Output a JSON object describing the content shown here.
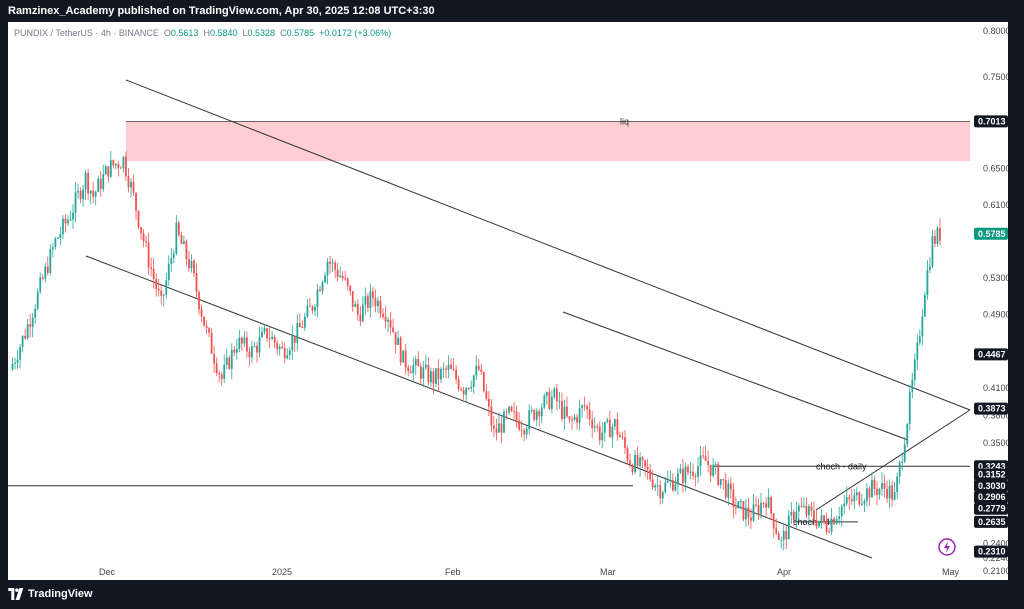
{
  "header": {
    "publisher": "Ramzinex_Academy published on TradingView.com, Apr 30, 2025 12:08 UTC+3:30"
  },
  "legend": {
    "symbol": "PUNDIX / TetherUS · 4h · BINANCE",
    "o_label": "O",
    "o_value": "0.5613",
    "h_label": "H",
    "h_value": "0.5840",
    "l_label": "L",
    "l_value": "0.5328",
    "c_label": "C",
    "c_value": "0.5785",
    "change": "+0.0172 (+3.06%)"
  },
  "footer": {
    "brand": "TradingView"
  },
  "icons": {
    "logo": "tradingview-logo-icon",
    "replay": "lightning-icon"
  },
  "colors": {
    "up": "#26a69a",
    "down": "#ef5350",
    "zone": "#ffcdd2",
    "text_green": "#089981",
    "last_price": "#089981"
  },
  "chart_data": {
    "type": "candlestick",
    "symbol": "PUNDIX / TetherUS",
    "timeframe": "4h",
    "exchange": "BINANCE",
    "ylim": [
      0.2,
      0.81
    ],
    "y_ticks": [
      "0.8000",
      "0.7500",
      "0.6500",
      "0.6100",
      "0.5300",
      "0.4900",
      "0.4100",
      "0.3800",
      "0.3500",
      "0.2400",
      "0.2240",
      "0.2100"
    ],
    "x_ticks": [
      "Dec",
      "2025",
      "Feb",
      "Mar",
      "Apr",
      "May"
    ],
    "price_labels": [
      {
        "value": "0.7013",
        "style": "dark"
      },
      {
        "value": "0.5785",
        "style": "last"
      },
      {
        "value": "0.4467",
        "style": "dark"
      },
      {
        "value": "0.3873",
        "style": "dark"
      },
      {
        "value": "0.3243",
        "style": "dark"
      },
      {
        "value": "0.3152",
        "style": "dark"
      },
      {
        "value": "0.3030",
        "style": "dark"
      },
      {
        "value": "0.2906",
        "style": "dark"
      },
      {
        "value": "0.2779",
        "style": "dark"
      },
      {
        "value": "0.2635",
        "style": "dark"
      },
      {
        "value": "0.2310",
        "style": "dark"
      }
    ],
    "price_path": [
      [
        0,
        0.43
      ],
      [
        2,
        0.47
      ],
      [
        4,
        0.52
      ],
      [
        6,
        0.57
      ],
      [
        8,
        0.6
      ],
      [
        10,
        0.64
      ],
      [
        11,
        0.62
      ],
      [
        13,
        0.65
      ],
      [
        15,
        0.66
      ],
      [
        16,
        0.63
      ],
      [
        18,
        0.56
      ],
      [
        20,
        0.5
      ],
      [
        22,
        0.58
      ],
      [
        24,
        0.54
      ],
      [
        26,
        0.47
      ],
      [
        28,
        0.42
      ],
      [
        30,
        0.46
      ],
      [
        32,
        0.45
      ],
      [
        34,
        0.47
      ],
      [
        36,
        0.45
      ],
      [
        38,
        0.47
      ],
      [
        40,
        0.5
      ],
      [
        42,
        0.55
      ],
      [
        44,
        0.53
      ],
      [
        46,
        0.49
      ],
      [
        48,
        0.51
      ],
      [
        50,
        0.49
      ],
      [
        52,
        0.44
      ],
      [
        54,
        0.43
      ],
      [
        56,
        0.42
      ],
      [
        58,
        0.43
      ],
      [
        60,
        0.41
      ],
      [
        62,
        0.43
      ],
      [
        64,
        0.36
      ],
      [
        66,
        0.38
      ],
      [
        68,
        0.37
      ],
      [
        70,
        0.39
      ],
      [
        72,
        0.4
      ],
      [
        74,
        0.37
      ],
      [
        76,
        0.39
      ],
      [
        78,
        0.36
      ],
      [
        80,
        0.37
      ],
      [
        82,
        0.33
      ],
      [
        84,
        0.32
      ],
      [
        86,
        0.3
      ],
      [
        88,
        0.31
      ],
      [
        90,
        0.32
      ],
      [
        92,
        0.33
      ],
      [
        94,
        0.31
      ],
      [
        96,
        0.28
      ],
      [
        98,
        0.27
      ],
      [
        100,
        0.29
      ],
      [
        102,
        0.24
      ],
      [
        104,
        0.28
      ],
      [
        106,
        0.27
      ],
      [
        108,
        0.26
      ],
      [
        110,
        0.28
      ],
      [
        112,
        0.29
      ],
      [
        114,
        0.3
      ],
      [
        116,
        0.3
      ],
      [
        117,
        0.29
      ],
      [
        118,
        0.34
      ],
      [
        120,
        0.45
      ],
      [
        121,
        0.52
      ],
      [
        122,
        0.57
      ],
      [
        123,
        0.5785
      ]
    ],
    "annotations": [
      {
        "text": "liq",
        "type": "zone",
        "from": 0.658,
        "to": 0.7013
      },
      {
        "text": "choch - daily",
        "type": "level",
        "value": 0.3243
      },
      {
        "text": "choch - 4h",
        "type": "level",
        "value": 0.2635
      },
      {
        "type": "level",
        "value": 0.303
      },
      {
        "type": "channel"
      }
    ]
  }
}
